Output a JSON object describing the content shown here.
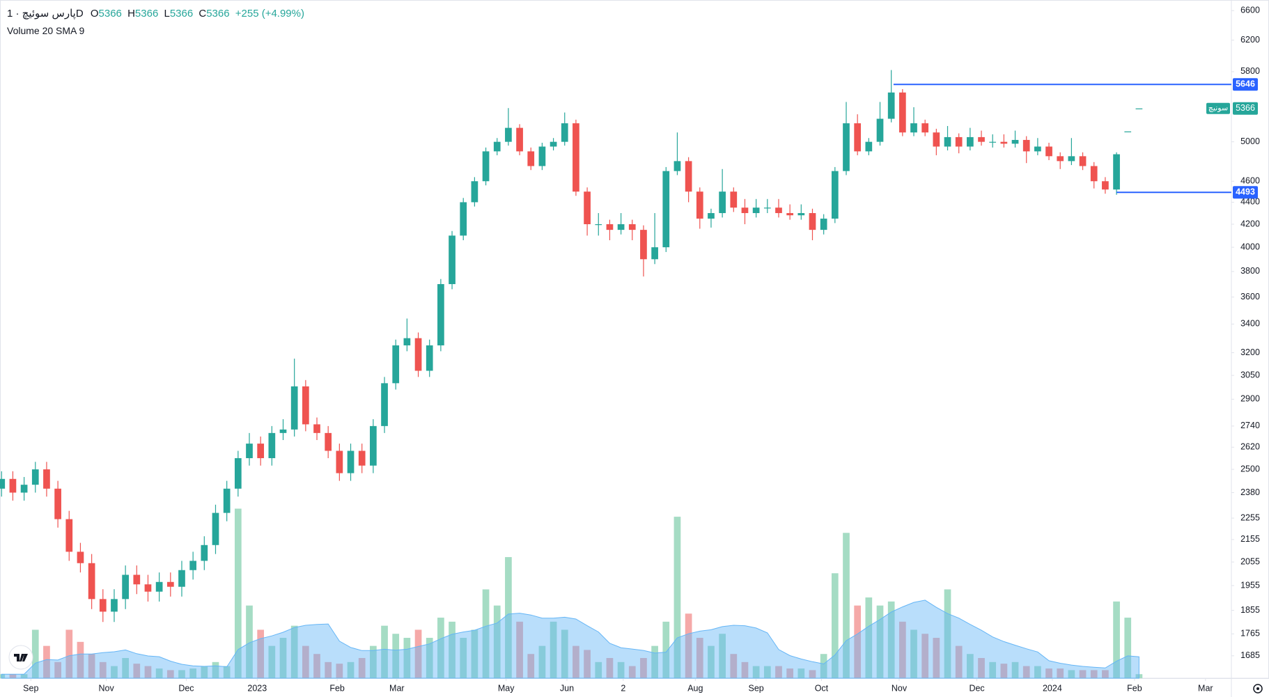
{
  "chart_data": {
    "type": "candlestick",
    "title": "پارس سوئیچ · 1D",
    "ohlc_labels": [
      "O",
      "H",
      "L",
      "C"
    ],
    "change": "+255 (+4.99%)",
    "volume_title": "Volume 20 SMA 9",
    "symbol_label": "سونیچ",
    "up_color": "#26a69a",
    "down_color": "#ef5350",
    "volume_up_color": "#a5dcc4",
    "volume_down_color": "#f5a9a8",
    "sma_color": "#64b5f6",
    "line_color": "#2962ff",
    "log": true,
    "grid": false,
    "ylim": [
      1607,
      6750
    ],
    "yticks": [
      1685,
      1765,
      1855,
      1955,
      2055,
      2155,
      2255,
      2380,
      2500,
      2620,
      2740,
      2900,
      3050,
      3200,
      3400,
      3600,
      3800,
      4000,
      4200,
      4400,
      4600,
      5000,
      5800,
      6200,
      6600
    ],
    "xlim": [
      -0.14,
      109.2
    ],
    "xticks": [
      {
        "value": 2.6,
        "label": "Sep"
      },
      {
        "value": 9.3,
        "label": "Nov"
      },
      {
        "value": 16.4,
        "label": "Dec"
      },
      {
        "value": 22.7,
        "label": "2023"
      },
      {
        "value": 29.8,
        "label": "Feb"
      },
      {
        "value": 35.1,
        "label": "Mar"
      },
      {
        "value": 44.8,
        "label": "May"
      },
      {
        "value": 50.2,
        "label": "Jun"
      },
      {
        "value": 55.2,
        "label": "2"
      },
      {
        "value": 61.6,
        "label": "Aug"
      },
      {
        "value": 67.0,
        "label": "Sep"
      },
      {
        "value": 72.8,
        "label": "Oct"
      },
      {
        "value": 79.7,
        "label": "Nov"
      },
      {
        "value": 86.6,
        "label": "Dec"
      },
      {
        "value": 93.3,
        "label": "2024"
      },
      {
        "value": 100.6,
        "label": "Feb"
      },
      {
        "value": 106.9,
        "label": "Mar"
      }
    ],
    "hlines": [
      {
        "value": 5646,
        "from": 79.2
      },
      {
        "value": 4493,
        "from": 99.0
      }
    ],
    "open": [
      2400,
      2450,
      2380,
      2420,
      2500,
      2400,
      2250,
      2100,
      2050,
      1900,
      1850,
      1900,
      2000,
      1960,
      1930,
      1970,
      1950,
      2020,
      2060,
      2130,
      2280,
      2400,
      2560,
      2640,
      2560,
      2700,
      2720,
      2980,
      2750,
      2700,
      2600,
      2480,
      2600,
      2520,
      2740,
      3000,
      3250,
      3300,
      3080,
      3250,
      3700,
      4100,
      4400,
      4600,
      4900,
      5000,
      5150,
      4900,
      4750,
      4950,
      5000,
      5200,
      4500,
      4200,
      4200,
      4150,
      4200,
      4150,
      3900,
      4000,
      4700,
      4800,
      4500,
      4250,
      4300,
      4500,
      4350,
      4300,
      4350,
      4350,
      4300,
      4280,
      4300,
      4150,
      4250,
      4700,
      5200,
      4900,
      5000,
      5250,
      5550,
      5100,
      5200,
      5100,
      4950,
      5050,
      4950,
      5050,
      5000,
      5000,
      4980,
      5020,
      4900,
      4950,
      4850,
      4800,
      4850,
      4750,
      4600,
      4520,
      5111,
      5366
    ],
    "high": [
      2490,
      2490,
      2460,
      2540,
      2540,
      2440,
      2290,
      2140,
      2090,
      1940,
      1940,
      2040,
      2040,
      2000,
      2010,
      2010,
      2060,
      2100,
      2170,
      2320,
      2440,
      2600,
      2700,
      2680,
      2740,
      2780,
      3160,
      3020,
      2790,
      2740,
      2640,
      2640,
      2640,
      2780,
      3040,
      3290,
      3440,
      3340,
      3290,
      3740,
      4140,
      4440,
      4640,
      4940,
      5040,
      5370,
      5190,
      4940,
      4990,
      5040,
      5320,
      5240,
      4540,
      4300,
      4240,
      4300,
      4240,
      4190,
      4300,
      4740,
      5100,
      4840,
      4540,
      4340,
      4720,
      4540,
      4430,
      4430,
      4430,
      4430,
      4380,
      4380,
      4340,
      4290,
      4740,
      5440,
      5300,
      5040,
      5440,
      5820,
      5590,
      5380,
      5240,
      5140,
      5170,
      5090,
      5150,
      5120,
      5080,
      5080,
      5120,
      5060,
      5040,
      4990,
      4890,
      5040,
      4890,
      4790,
      4640,
      4890,
      5111,
      5366
    ],
    "low": [
      2360,
      2340,
      2340,
      2380,
      2360,
      2210,
      2060,
      2010,
      1860,
      1810,
      1810,
      1860,
      1920,
      1890,
      1890,
      1910,
      1910,
      1980,
      2020,
      2090,
      2240,
      2360,
      2520,
      2520,
      2520,
      2660,
      2680,
      2710,
      2660,
      2560,
      2440,
      2440,
      2480,
      2480,
      2700,
      2960,
      3210,
      3040,
      3040,
      3210,
      3660,
      4060,
      4360,
      4560,
      4860,
      4960,
      4860,
      4710,
      4710,
      4910,
      4960,
      4460,
      4100,
      4100,
      4060,
      4110,
      4060,
      3760,
      3860,
      3960,
      4660,
      4400,
      4160,
      4170,
      4260,
      4310,
      4200,
      4260,
      4300,
      4260,
      4240,
      4240,
      4060,
      4110,
      4210,
      4660,
      4860,
      4860,
      4960,
      5210,
      5060,
      5060,
      5060,
      4860,
      4910,
      4880,
      4910,
      4960,
      4940,
      4940,
      4940,
      4780,
      4860,
      4810,
      4720,
      4760,
      4710,
      4530,
      4480,
      4470,
      5111,
      5366
    ],
    "close": [
      2450,
      2380,
      2420,
      2500,
      2400,
      2250,
      2100,
      2050,
      1900,
      1850,
      1900,
      2000,
      1960,
      1930,
      1970,
      1950,
      2020,
      2060,
      2130,
      2280,
      2400,
      2560,
      2640,
      2560,
      2700,
      2720,
      2980,
      2750,
      2700,
      2600,
      2480,
      2600,
      2520,
      2740,
      3000,
      3250,
      3300,
      3080,
      3250,
      3700,
      4100,
      4400,
      4600,
      4900,
      5000,
      5150,
      4900,
      4750,
      4950,
      5000,
      5200,
      4500,
      4200,
      4200,
      4150,
      4200,
      4150,
      3900,
      4000,
      4700,
      4800,
      4500,
      4250,
      4300,
      4500,
      4350,
      4300,
      4350,
      4350,
      4300,
      4280,
      4300,
      4150,
      4250,
      4700,
      5200,
      4900,
      5000,
      5250,
      5550,
      5100,
      5200,
      5100,
      4950,
      5050,
      4950,
      5050,
      5000,
      5000,
      4980,
      5020,
      4900,
      4950,
      4850,
      4800,
      4850,
      4750,
      4600,
      4520,
      4870,
      5111,
      5366
    ],
    "volume": [
      5,
      5,
      5,
      60,
      40,
      20,
      60,
      45,
      30,
      20,
      15,
      25,
      18,
      15,
      12,
      10,
      10,
      12,
      15,
      20,
      15,
      210,
      90,
      60,
      40,
      50,
      65,
      40,
      30,
      20,
      18,
      20,
      25,
      40,
      65,
      55,
      50,
      60,
      50,
      75,
      70,
      50,
      60,
      110,
      90,
      150,
      70,
      30,
      40,
      70,
      60,
      40,
      35,
      20,
      25,
      20,
      15,
      25,
      40,
      70,
      200,
      80,
      50,
      40,
      55,
      30,
      20,
      15,
      15,
      15,
      12,
      12,
      10,
      30,
      130,
      180,
      90,
      100,
      90,
      95,
      70,
      60,
      55,
      50,
      110,
      40,
      30,
      25,
      20,
      18,
      20,
      15,
      15,
      12,
      12,
      10,
      10,
      10,
      10,
      95,
      75,
      5
    ]
  }
}
